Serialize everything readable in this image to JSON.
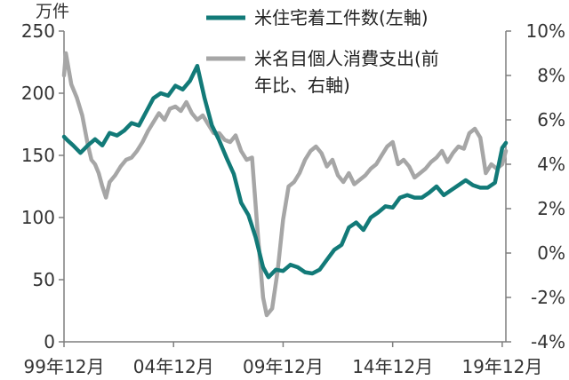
{
  "chart_data": {
    "type": "line",
    "y_left": {
      "unit": "万件",
      "ylim": [
        0,
        250
      ],
      "ticks": [
        "0",
        "50",
        "100",
        "150",
        "200",
        "250"
      ]
    },
    "y_right": {
      "ylim": [
        -4,
        10
      ],
      "ticks": [
        "-4%",
        "-2%",
        "0%",
        "2%",
        "4%",
        "6%",
        "8%",
        "10%"
      ]
    },
    "x_ticks": [
      "99年12月",
      "04年12月",
      "09年12月",
      "14年12月",
      "19年12月"
    ],
    "x_range": [
      "1999-12",
      "2020-02"
    ],
    "grid": false,
    "legend_position": "top-right",
    "series": [
      {
        "name": "米住宅着工件数(左軸)",
        "axis": "left",
        "color": "#127a78",
        "points": [
          [
            "1999-12",
            165
          ],
          [
            "2000-02",
            162
          ],
          [
            "2000-05",
            158
          ],
          [
            "2000-09",
            152
          ],
          [
            "2001-01",
            158
          ],
          [
            "2001-05",
            163
          ],
          [
            "2001-09",
            158
          ],
          [
            "2002-01",
            168
          ],
          [
            "2002-05",
            166
          ],
          [
            "2002-09",
            170
          ],
          [
            "2003-01",
            176
          ],
          [
            "2003-05",
            174
          ],
          [
            "2003-09",
            185
          ],
          [
            "2004-01",
            196
          ],
          [
            "2004-05",
            200
          ],
          [
            "2004-09",
            198
          ],
          [
            "2005-01",
            206
          ],
          [
            "2005-05",
            203
          ],
          [
            "2005-09",
            210
          ],
          [
            "2006-01",
            222
          ],
          [
            "2006-05",
            196
          ],
          [
            "2006-09",
            174
          ],
          [
            "2007-01",
            162
          ],
          [
            "2007-05",
            148
          ],
          [
            "2007-09",
            135
          ],
          [
            "2008-01",
            112
          ],
          [
            "2008-05",
            102
          ],
          [
            "2008-09",
            84
          ],
          [
            "2009-01",
            60
          ],
          [
            "2009-04",
            52
          ],
          [
            "2009-08",
            58
          ],
          [
            "2009-12",
            57
          ],
          [
            "2010-04",
            62
          ],
          [
            "2010-08",
            60
          ],
          [
            "2010-12",
            56
          ],
          [
            "2011-04",
            55
          ],
          [
            "2011-08",
            58
          ],
          [
            "2011-12",
            66
          ],
          [
            "2012-04",
            74
          ],
          [
            "2012-08",
            78
          ],
          [
            "2012-12",
            92
          ],
          [
            "2013-04",
            96
          ],
          [
            "2013-08",
            90
          ],
          [
            "2013-12",
            100
          ],
          [
            "2014-04",
            104
          ],
          [
            "2014-08",
            109
          ],
          [
            "2014-12",
            108
          ],
          [
            "2015-04",
            116
          ],
          [
            "2015-08",
            118
          ],
          [
            "2015-12",
            116
          ],
          [
            "2016-04",
            116
          ],
          [
            "2016-08",
            120
          ],
          [
            "2016-12",
            125
          ],
          [
            "2017-04",
            118
          ],
          [
            "2017-08",
            122
          ],
          [
            "2017-12",
            126
          ],
          [
            "2018-04",
            130
          ],
          [
            "2018-08",
            126
          ],
          [
            "2018-12",
            124
          ],
          [
            "2019-04",
            124
          ],
          [
            "2019-08",
            128
          ],
          [
            "2019-12",
            156
          ],
          [
            "2020-02",
            160
          ]
        ]
      },
      {
        "name": "米名目個人消費支出(前年比、右軸)",
        "axis": "right",
        "color": "#a6a6a6",
        "points": [
          [
            "1999-12",
            8.0
          ],
          [
            "2000-01",
            9.0
          ],
          [
            "2000-04",
            7.6
          ],
          [
            "2000-07",
            7.0
          ],
          [
            "2000-10",
            6.2
          ],
          [
            "2001-01",
            4.9
          ],
          [
            "2001-03",
            4.2
          ],
          [
            "2001-05",
            4.0
          ],
          [
            "2001-07",
            3.6
          ],
          [
            "2001-09",
            3.0
          ],
          [
            "2001-11",
            2.5
          ],
          [
            "2002-01",
            3.2
          ],
          [
            "2002-04",
            3.5
          ],
          [
            "2002-07",
            3.9
          ],
          [
            "2002-10",
            4.2
          ],
          [
            "2003-01",
            4.3
          ],
          [
            "2003-04",
            4.6
          ],
          [
            "2003-07",
            5.0
          ],
          [
            "2003-10",
            5.5
          ],
          [
            "2004-01",
            5.9
          ],
          [
            "2004-04",
            6.3
          ],
          [
            "2004-07",
            6.0
          ],
          [
            "2004-10",
            6.5
          ],
          [
            "2005-01",
            6.6
          ],
          [
            "2005-04",
            6.4
          ],
          [
            "2005-07",
            6.8
          ],
          [
            "2005-10",
            6.3
          ],
          [
            "2006-01",
            6.0
          ],
          [
            "2006-04",
            6.2
          ],
          [
            "2006-07",
            5.8
          ],
          [
            "2006-10",
            5.4
          ],
          [
            "2007-01",
            5.4
          ],
          [
            "2007-04",
            5.1
          ],
          [
            "2007-07",
            5.0
          ],
          [
            "2007-10",
            5.3
          ],
          [
            "2008-01",
            4.6
          ],
          [
            "2008-04",
            4.2
          ],
          [
            "2008-07",
            4.3
          ],
          [
            "2008-10",
            1.0
          ],
          [
            "2009-01",
            -2.0
          ],
          [
            "2009-03",
            -2.8
          ],
          [
            "2009-06",
            -2.5
          ],
          [
            "2009-09",
            -0.8
          ],
          [
            "2009-12",
            1.5
          ],
          [
            "2010-03",
            3.0
          ],
          [
            "2010-06",
            3.2
          ],
          [
            "2010-09",
            3.6
          ],
          [
            "2010-12",
            4.2
          ],
          [
            "2011-03",
            4.6
          ],
          [
            "2011-06",
            4.8
          ],
          [
            "2011-09",
            4.5
          ],
          [
            "2011-12",
            3.9
          ],
          [
            "2012-03",
            4.2
          ],
          [
            "2012-06",
            3.5
          ],
          [
            "2012-09",
            3.2
          ],
          [
            "2012-12",
            3.6
          ],
          [
            "2013-03",
            3.1
          ],
          [
            "2013-06",
            3.3
          ],
          [
            "2013-09",
            3.5
          ],
          [
            "2013-12",
            3.8
          ],
          [
            "2014-03",
            4.0
          ],
          [
            "2014-06",
            4.4
          ],
          [
            "2014-09",
            4.8
          ],
          [
            "2014-12",
            5.0
          ],
          [
            "2015-03",
            4.0
          ],
          [
            "2015-06",
            4.2
          ],
          [
            "2015-09",
            3.9
          ],
          [
            "2015-12",
            3.4
          ],
          [
            "2016-03",
            3.6
          ],
          [
            "2016-06",
            3.8
          ],
          [
            "2016-09",
            4.1
          ],
          [
            "2016-12",
            4.3
          ],
          [
            "2017-03",
            4.6
          ],
          [
            "2017-06",
            4.1
          ],
          [
            "2017-09",
            4.5
          ],
          [
            "2017-12",
            4.8
          ],
          [
            "2018-03",
            4.7
          ],
          [
            "2018-06",
            5.4
          ],
          [
            "2018-09",
            5.6
          ],
          [
            "2018-12",
            5.2
          ],
          [
            "2019-03",
            3.6
          ],
          [
            "2019-06",
            4.0
          ],
          [
            "2019-09",
            3.8
          ],
          [
            "2019-12",
            4.0
          ],
          [
            "2020-02",
            4.6
          ]
        ]
      }
    ]
  }
}
